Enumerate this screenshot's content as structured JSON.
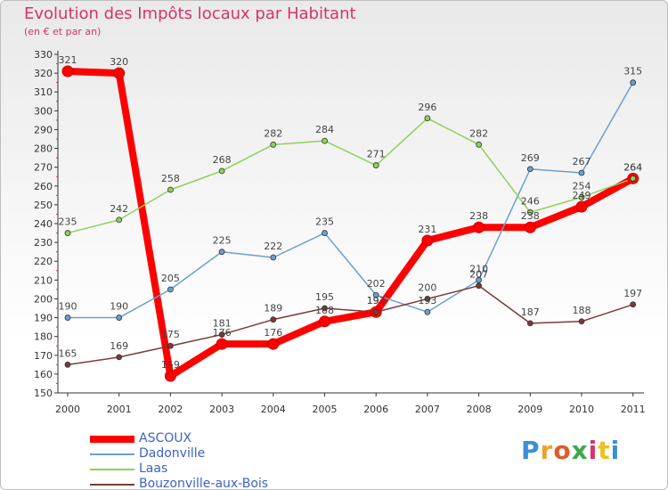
{
  "title": "Evolution des Impôts locaux par Habitant",
  "subtitle": "(en € et par an)",
  "brand": "Proxiti",
  "chart_data": {
    "type": "line",
    "title": "Evolution des Impôts locaux par Habitant",
    "ylabel": "(en € et par an)",
    "xlabel": "",
    "ylim": [
      150,
      330
    ],
    "yticks": [
      150,
      160,
      170,
      180,
      190,
      200,
      210,
      220,
      230,
      240,
      250,
      260,
      270,
      280,
      290,
      300,
      310,
      320,
      330
    ],
    "categories": [
      "2000",
      "2001",
      "2002",
      "2003",
      "2004",
      "2005",
      "2006",
      "2007",
      "2008",
      "2009",
      "2010",
      "2011"
    ],
    "legend_position": "bottom-left",
    "series": [
      {
        "name": "ASCOUX",
        "color": "#ff0000",
        "width": 8,
        "dot": 6,
        "values": [
          321,
          320,
          159,
          176,
          176,
          188,
          193,
          231,
          238,
          238,
          249,
          264
        ],
        "labels": [
          "321",
          "320",
          "159",
          "176",
          "176",
          "188",
          "193",
          "231",
          "238",
          "238",
          "249",
          "264"
        ]
      },
      {
        "name": "Dadonville",
        "color": "#6b9fd0",
        "width": 1.5,
        "dot": 3,
        "values": [
          190,
          190,
          205,
          225,
          222,
          235,
          202,
          193,
          210,
          269,
          267,
          315
        ],
        "labels": [
          "190",
          "190",
          "205",
          "225",
          "222",
          "235",
          "202",
          "193",
          "210",
          "269",
          "267",
          "315"
        ]
      },
      {
        "name": "Laas",
        "color": "#8fd15a",
        "width": 1.5,
        "dot": 3,
        "values": [
          235,
          242,
          258,
          268,
          282,
          284,
          271,
          296,
          282,
          246,
          254,
          264
        ],
        "labels": [
          "235",
          "242",
          "258",
          "268",
          "282",
          "284",
          "271",
          "296",
          "282",
          "246",
          "254",
          "264"
        ]
      },
      {
        "name": "Bouzonville-aux-Bois",
        "color": "#7a3a3a",
        "width": 1.5,
        "dot": 3,
        "values": [
          165,
          169,
          175,
          181,
          189,
          195,
          193,
          200,
          207,
          187,
          188,
          197
        ],
        "labels": [
          "165",
          "169",
          "175",
          "181",
          "189",
          "195",
          "193",
          "200",
          "207",
          "187",
          "188",
          "197"
        ]
      }
    ]
  }
}
